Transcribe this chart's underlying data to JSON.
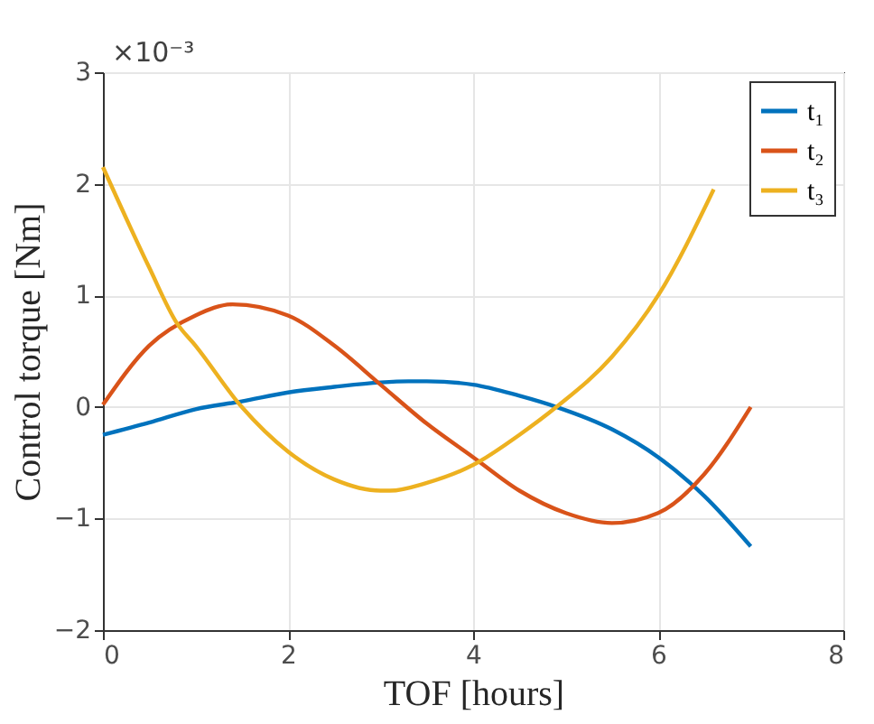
{
  "chart_data": {
    "type": "line",
    "xlabel": "TOF [hours]",
    "ylabel": "Control torque [Nm]",
    "annotations": [
      "×10⁻³"
    ],
    "xlim": [
      0,
      8
    ],
    "xticks": [
      0,
      2,
      4,
      6,
      8
    ],
    "ylim": [
      -2,
      3
    ],
    "yticks": [
      -2,
      -1,
      0,
      1,
      2,
      3
    ],
    "grid": true,
    "legend": "top right",
    "line_style": "solid",
    "marker": "none",
    "series": [
      {
        "name": "t₁",
        "color": "#0072bd",
        "x": [
          0,
          0.5,
          1,
          1.5,
          2,
          2.5,
          3,
          3.3,
          3.5,
          4,
          4.5,
          4.9,
          5.5,
          6,
          6.5,
          7
        ],
        "values": [
          -0.25,
          -0.14,
          -0.02,
          0.05,
          0.13,
          0.18,
          0.22,
          0.23,
          0.23,
          0.2,
          0.1,
          0,
          -0.2,
          -0.45,
          -0.8,
          -1.25
        ]
      },
      {
        "name": "t₂",
        "color": "#d95319",
        "x": [
          0,
          0.5,
          1,
          1.4,
          2,
          2.5,
          3,
          3.5,
          4,
          4.5,
          5,
          5.5,
          6,
          6.5,
          7
        ],
        "values": [
          0.02,
          0.55,
          0.82,
          0.92,
          0.82,
          0.55,
          0.2,
          -0.15,
          -0.45,
          -0.75,
          -0.95,
          -1.04,
          -0.95,
          -0.6,
          0
        ]
      },
      {
        "name": "t₃",
        "color": "#edb120",
        "x": [
          0,
          0.5,
          0.8,
          1,
          1.5,
          2,
          2.5,
          3,
          3.1,
          3.5,
          4,
          4.5,
          4.9,
          5.5,
          6,
          6.6
        ],
        "values": [
          2.15,
          1.25,
          0.75,
          0.55,
          0,
          -0.4,
          -0.65,
          -0.75,
          -0.75,
          -0.68,
          -0.52,
          -0.25,
          0,
          0.45,
          1.0,
          1.95
        ]
      }
    ]
  }
}
